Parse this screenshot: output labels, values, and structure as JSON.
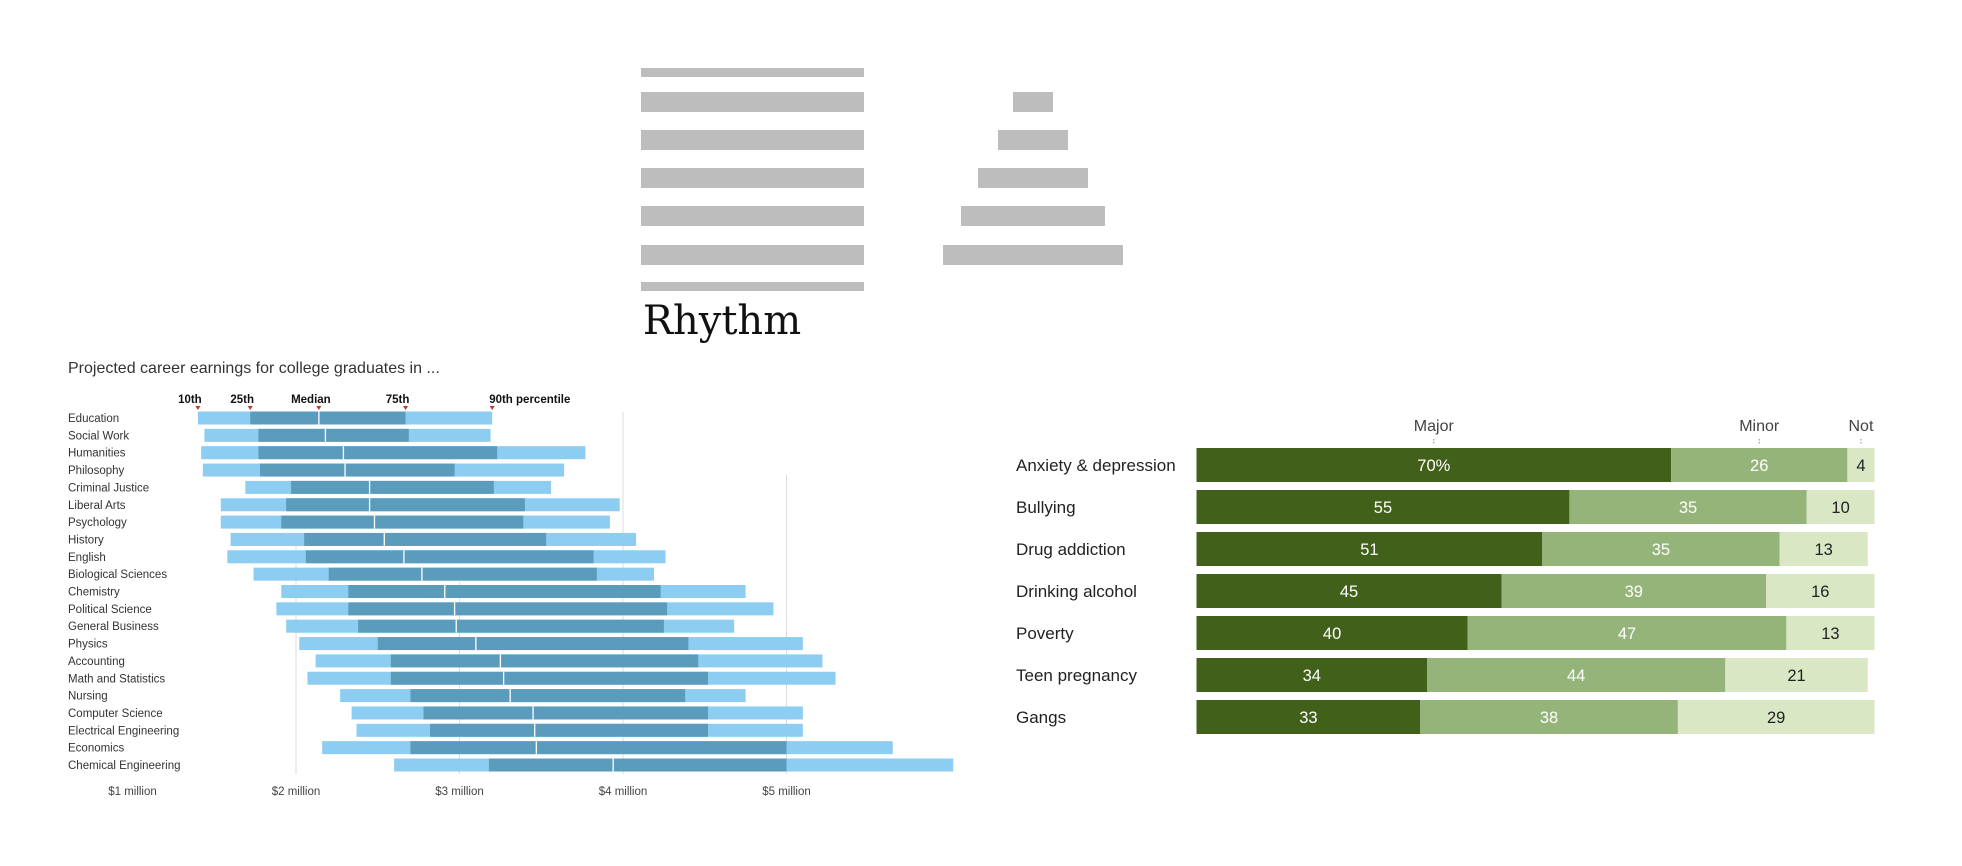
{
  "colors": {
    "rhythm_bar": "#bdbdbd",
    "earn_outer": "#8dcdf1",
    "earn_inner": "#5b9cbd",
    "major": "#41601a",
    "minor": "#95b47a",
    "not": "#d9e7c5"
  },
  "chart_data": [
    {
      "type": "bar",
      "title": "Rhythm",
      "series": [
        {
          "name": "left",
          "values": [
            100,
            100,
            100,
            100,
            100,
            100,
            100
          ]
        },
        {
          "name": "right",
          "values": [
            20,
            35,
            55,
            72,
            90
          ]
        }
      ]
    },
    {
      "type": "bar",
      "title": "Projected career earnings for college graduates in ...",
      "percentile_labels": [
        "10th",
        "25th",
        "Median",
        "75th",
        "90th percentile"
      ],
      "x_ticks": [
        "$1 million",
        "$2 million",
        "$3 million",
        "$4 million",
        "$5 million"
      ],
      "x_tick_values": [
        1,
        2,
        3,
        4,
        5
      ],
      "xlim": [
        0.62,
        6.02
      ],
      "categories": [
        "Education",
        "Social Work",
        "Humanities",
        "Philosophy",
        "Criminal Justice",
        "Liberal Arts",
        "Psychology",
        "History",
        "English",
        "Biological Sciences",
        "Chemistry",
        "Political Science",
        "General Business",
        "Physics",
        "Accounting",
        "Math and Statistics",
        "Nursing",
        "Computer Science",
        "Electrical Engineering",
        "Economics",
        "Chemical Engineering"
      ],
      "p10": [
        1.4,
        1.44,
        1.42,
        1.43,
        1.69,
        1.54,
        1.54,
        1.6,
        1.58,
        1.74,
        1.91,
        1.88,
        1.94,
        2.02,
        2.12,
        2.07,
        2.27,
        2.34,
        2.37,
        2.16,
        2.6
      ],
      "p25": [
        1.72,
        1.77,
        1.77,
        1.78,
        1.97,
        1.94,
        1.91,
        2.05,
        2.06,
        2.2,
        2.32,
        2.32,
        2.38,
        2.5,
        2.58,
        2.58,
        2.7,
        2.78,
        2.82,
        2.7,
        3.18
      ],
      "median": [
        2.14,
        2.18,
        2.29,
        2.3,
        2.45,
        2.45,
        2.48,
        2.54,
        2.66,
        2.77,
        2.91,
        2.97,
        2.98,
        3.1,
        3.25,
        3.27,
        3.31,
        3.45,
        3.46,
        3.47,
        3.94
      ],
      "p75": [
        2.67,
        2.69,
        3.23,
        2.97,
        3.21,
        3.4,
        3.39,
        3.53,
        3.82,
        3.84,
        4.23,
        4.27,
        4.25,
        4.4,
        4.46,
        4.52,
        4.38,
        4.52,
        4.52,
        5.0,
        5.0
      ],
      "p90": [
        3.2,
        3.19,
        3.77,
        3.64,
        3.56,
        3.98,
        3.92,
        4.08,
        4.26,
        4.19,
        4.75,
        4.92,
        4.68,
        5.1,
        5.22,
        5.3,
        4.75,
        5.1,
        5.1,
        5.65,
        6.02
      ]
    },
    {
      "type": "bar",
      "stacked": true,
      "orientation": "horizontal",
      "column_headers": [
        "Major",
        "Minor",
        "Not"
      ],
      "categories": [
        "Anxiety & depression",
        "Bullying",
        "Drug addiction",
        "Drinking alcohol",
        "Poverty",
        "Teen pregnancy",
        "Gangs"
      ],
      "series": [
        {
          "name": "Major",
          "values": [
            70,
            55,
            51,
            45,
            40,
            34,
            33
          ],
          "labels": [
            "70%",
            "55",
            "51",
            "45",
            "40",
            "34",
            "33"
          ]
        },
        {
          "name": "Minor",
          "values": [
            26,
            35,
            35,
            39,
            47,
            44,
            38
          ],
          "labels": [
            "26",
            "35",
            "35",
            "39",
            "47",
            "44",
            "38"
          ]
        },
        {
          "name": "Not",
          "values": [
            4,
            10,
            13,
            16,
            13,
            21,
            29
          ],
          "labels": [
            "4",
            "10",
            "13",
            "16",
            "13",
            "21",
            "29"
          ]
        }
      ]
    }
  ]
}
